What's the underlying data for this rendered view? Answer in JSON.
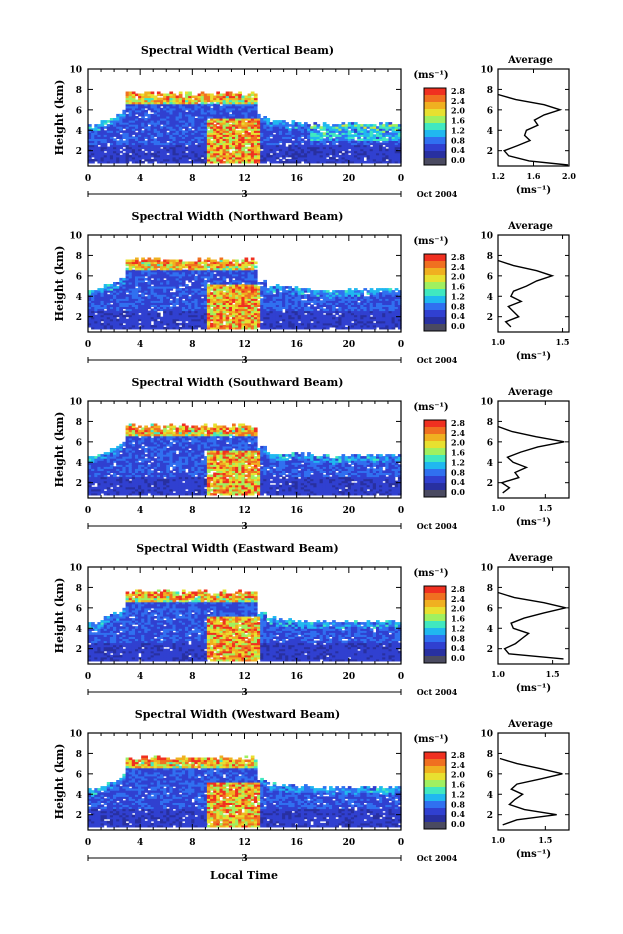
{
  "figure": {
    "x_axis_title": "Local Time",
    "date_label": "Oct 2004",
    "day_label": "3",
    "y_axis_title": "Height (km)",
    "unit_label": "(ms⁻¹)",
    "colorbar_ticks": [
      "2.8",
      "2.4",
      "2.0",
      "1.6",
      "1.2",
      "0.8",
      "0.4",
      "0.0"
    ],
    "colorbar_range": [
      0.0,
      2.8
    ],
    "colorbar_colors": [
      "#f03020",
      "#f07020",
      "#f0b020",
      "#e8e030",
      "#a0f060",
      "#40e8c0",
      "#20b8f0",
      "#3070f0",
      "#3040d0",
      "#2830a0",
      "#4a4a60"
    ]
  },
  "chart_data": [
    {
      "type": "heatmap",
      "title": "Spectral Width (Vertical Beam)",
      "xlabel": "",
      "ylabel": "Height (km)",
      "x_ticks": [
        "0",
        "4",
        "8",
        "12",
        "16",
        "20",
        "0"
      ],
      "y_ticks": [
        "2",
        "4",
        "6",
        "8",
        "10"
      ],
      "xlim": [
        0,
        24
      ],
      "ylim": [
        0.5,
        10
      ],
      "zlim": [
        0.0,
        2.8
      ],
      "average": {
        "title": "Average",
        "xlabel": "(ms⁻¹)",
        "x_ticks": [
          "1.2",
          "1.6",
          "2.0"
        ],
        "xlim": [
          1.2,
          2.0
        ],
        "y_ticks": [
          "2",
          "4",
          "6",
          "8",
          "10"
        ],
        "ylim": [
          0.5,
          10
        ],
        "height": [
          0.6,
          1.0,
          1.5,
          2.0,
          2.5,
          3.0,
          3.5,
          4.0,
          4.5,
          5.0,
          5.5,
          6.0,
          6.5,
          7.0,
          7.5
        ],
        "value": [
          1.99,
          1.55,
          1.32,
          1.27,
          1.42,
          1.56,
          1.5,
          1.52,
          1.65,
          1.61,
          1.72,
          1.9,
          1.72,
          1.4,
          1.2
        ]
      }
    },
    {
      "type": "heatmap",
      "title": "Spectral Width (Northward Beam)",
      "xlabel": "",
      "ylabel": "Height (km)",
      "x_ticks": [
        "0",
        "4",
        "8",
        "12",
        "16",
        "20",
        "0"
      ],
      "y_ticks": [
        "2",
        "4",
        "6",
        "8",
        "10"
      ],
      "xlim": [
        0,
        24
      ],
      "ylim": [
        0.5,
        10
      ],
      "zlim": [
        0.0,
        2.8
      ],
      "average": {
        "title": "Average",
        "xlabel": "(ms⁻¹)",
        "x_ticks": [
          "1.0",
          "1.5"
        ],
        "xlim": [
          1.0,
          1.55
        ],
        "y_ticks": [
          "2",
          "4",
          "6",
          "8",
          "10"
        ],
        "ylim": [
          0.5,
          10
        ],
        "height": [
          1.0,
          1.5,
          2.0,
          2.5,
          3.0,
          3.5,
          4.0,
          4.5,
          5.0,
          5.5,
          6.0,
          6.5,
          7.0,
          7.5
        ],
        "value": [
          1.1,
          1.06,
          1.16,
          1.12,
          1.08,
          1.18,
          1.1,
          1.12,
          1.22,
          1.3,
          1.42,
          1.3,
          1.12,
          1.0
        ]
      }
    },
    {
      "type": "heatmap",
      "title": "Spectral Width (Southward Beam)",
      "xlabel": "",
      "ylabel": "Height (km)",
      "x_ticks": [
        "0",
        "4",
        "8",
        "12",
        "16",
        "20",
        "0"
      ],
      "y_ticks": [
        "2",
        "4",
        "6",
        "8",
        "10"
      ],
      "xlim": [
        0,
        24
      ],
      "ylim": [
        0.5,
        10
      ],
      "zlim": [
        0.0,
        2.8
      ],
      "average": {
        "title": "Average",
        "xlabel": "(ms⁻¹)",
        "x_ticks": [
          "1.0",
          "1.5"
        ],
        "xlim": [
          1.0,
          1.75
        ],
        "y_ticks": [
          "2",
          "4",
          "6",
          "8",
          "10"
        ],
        "ylim": [
          0.5,
          10
        ],
        "height": [
          1.0,
          1.5,
          2.0,
          2.5,
          3.0,
          3.5,
          4.0,
          4.5,
          5.0,
          5.5,
          6.0,
          6.5,
          7.0,
          7.5
        ],
        "value": [
          1.05,
          1.12,
          1.04,
          1.22,
          1.18,
          1.3,
          1.16,
          1.1,
          1.24,
          1.42,
          1.7,
          1.4,
          1.15,
          1.0
        ]
      }
    },
    {
      "type": "heatmap",
      "title": "Spectral Width (Eastward Beam)",
      "xlabel": "",
      "ylabel": "Height (km)",
      "x_ticks": [
        "0",
        "4",
        "8",
        "12",
        "16",
        "20",
        "0"
      ],
      "y_ticks": [
        "2",
        "4",
        "6",
        "8",
        "10"
      ],
      "xlim": [
        0,
        24
      ],
      "ylim": [
        0.5,
        10
      ],
      "zlim": [
        0.0,
        2.8
      ],
      "average": {
        "title": "Average",
        "xlabel": "(ms⁻¹)",
        "x_ticks": [
          "1.0",
          "1.5"
        ],
        "xlim": [
          1.0,
          1.65
        ],
        "y_ticks": [
          "2",
          "4",
          "6",
          "8",
          "10"
        ],
        "ylim": [
          0.5,
          10
        ],
        "height": [
          1.0,
          1.5,
          2.0,
          2.5,
          3.0,
          3.5,
          4.0,
          4.5,
          5.0,
          5.5,
          6.0,
          6.5,
          7.0,
          7.5
        ],
        "value": [
          1.6,
          1.1,
          1.06,
          1.16,
          1.22,
          1.28,
          1.14,
          1.12,
          1.24,
          1.42,
          1.62,
          1.42,
          1.15,
          1.0
        ]
      }
    },
    {
      "type": "heatmap",
      "title": "Spectral Width (Westward Beam)",
      "xlabel": "",
      "ylabel": "Height (km)",
      "x_ticks": [
        "0",
        "4",
        "8",
        "12",
        "16",
        "20",
        "0"
      ],
      "y_ticks": [
        "2",
        "4",
        "6",
        "8",
        "10"
      ],
      "xlim": [
        0,
        24
      ],
      "ylim": [
        0.5,
        10
      ],
      "zlim": [
        0.0,
        2.8
      ],
      "average": {
        "title": "Average",
        "xlabel": "(ms⁻¹)",
        "x_ticks": [
          "1.0",
          "1.5"
        ],
        "xlim": [
          1.0,
          1.75
        ],
        "y_ticks": [
          "2",
          "4",
          "6",
          "8",
          "10"
        ],
        "ylim": [
          0.5,
          10
        ],
        "height": [
          1.0,
          1.5,
          2.0,
          2.5,
          3.0,
          3.5,
          4.0,
          4.5,
          5.0,
          5.5,
          6.0,
          6.5,
          7.0,
          7.5
        ],
        "value": [
          1.05,
          1.2,
          1.62,
          1.28,
          1.12,
          1.18,
          1.26,
          1.14,
          1.2,
          1.45,
          1.68,
          1.45,
          1.2,
          1.02
        ]
      }
    }
  ]
}
